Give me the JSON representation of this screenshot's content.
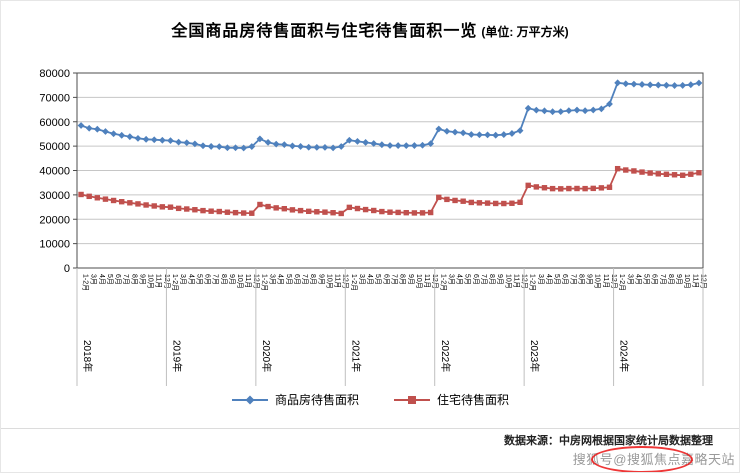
{
  "title": {
    "main": "全国商品房待售面积与住宅待售面积一览",
    "unit": "(单位: 万平方米)"
  },
  "legend": [
    {
      "label": "商品房待售面积",
      "color": "#4F81BD",
      "marker": "diamond"
    },
    {
      "label": "住宅待售面积",
      "color": "#C0504D",
      "marker": "square"
    }
  ],
  "source_note": "数据来源：中房网根据国家统计局数据整理",
  "watermark": "搜狐号@搜狐焦点嘉略天站",
  "chart_data": {
    "type": "line",
    "title": "全国商品房待售面积与住宅待售面积一览",
    "unit": "万平方米",
    "ylabel": "",
    "xlabel": "",
    "ylim": [
      0,
      80000
    ],
    "ytick_step": 10000,
    "grid": true,
    "legend_position": "bottom",
    "years": [
      "2018年",
      "2019年",
      "2020年",
      "2021年",
      "2022年",
      "2023年",
      "2024年"
    ],
    "months_per_year": [
      "1-2月",
      "3月",
      "4月",
      "5月",
      "6月",
      "7月",
      "8月",
      "9月",
      "10月",
      "11月",
      "12月"
    ],
    "series": [
      {
        "name": "商品房待售面积",
        "color": "#4F81BD",
        "marker": "diamond",
        "values": [
          58468,
          57329,
          56940,
          56010,
          55083,
          54428,
          53873,
          53191,
          52789,
          52627,
          52414,
          52251,
          51646,
          51380,
          50928,
          50162,
          49876,
          49784,
          49346,
          49323,
          49221,
          49821,
          52984,
          51525,
          50825,
          50602,
          50081,
          49867,
          49524,
          49477,
          49492,
          49287,
          49850,
          52425,
          51943,
          51511,
          51087,
          50580,
          50261,
          50230,
          50191,
          50232,
          50344,
          51023,
          57026,
          56113,
          55735,
          55433,
          54784,
          54655,
          54605,
          54478,
          54734,
          55203,
          56366,
          65528,
          64770,
          64487,
          64120,
          64159,
          64564,
          64795,
          64537,
          64835,
          65293,
          67295,
          75969,
          75600,
          75450,
          75300,
          75150,
          75050,
          74950,
          74850,
          74900,
          75200,
          75900
        ]
      },
      {
        "name": "住宅待售面积",
        "color": "#C0504D",
        "marker": "square",
        "values": [
          30163,
          29400,
          28800,
          28250,
          27700,
          27200,
          26750,
          26300,
          25850,
          25450,
          25091,
          24952,
          24468,
          24204,
          23905,
          23545,
          23310,
          23166,
          22880,
          22710,
          22550,
          22473,
          26051,
          25200,
          24666,
          24329,
          23855,
          23545,
          23250,
          23066,
          22920,
          22680,
          22379,
          24876,
          24400,
          23970,
          23590,
          23150,
          22900,
          22800,
          22690,
          22600,
          22620,
          22761,
          28985,
          28150,
          27714,
          27400,
          26901,
          26740,
          26620,
          26480,
          26450,
          26560,
          26947,
          33910,
          33270,
          32928,
          32564,
          32481,
          32588,
          32616,
          32566,
          32667,
          32881,
          33119,
          40750,
          40200,
          39820,
          39350,
          38950,
          38650,
          38450,
          38250,
          38050,
          38480,
          39088
        ]
      }
    ]
  }
}
